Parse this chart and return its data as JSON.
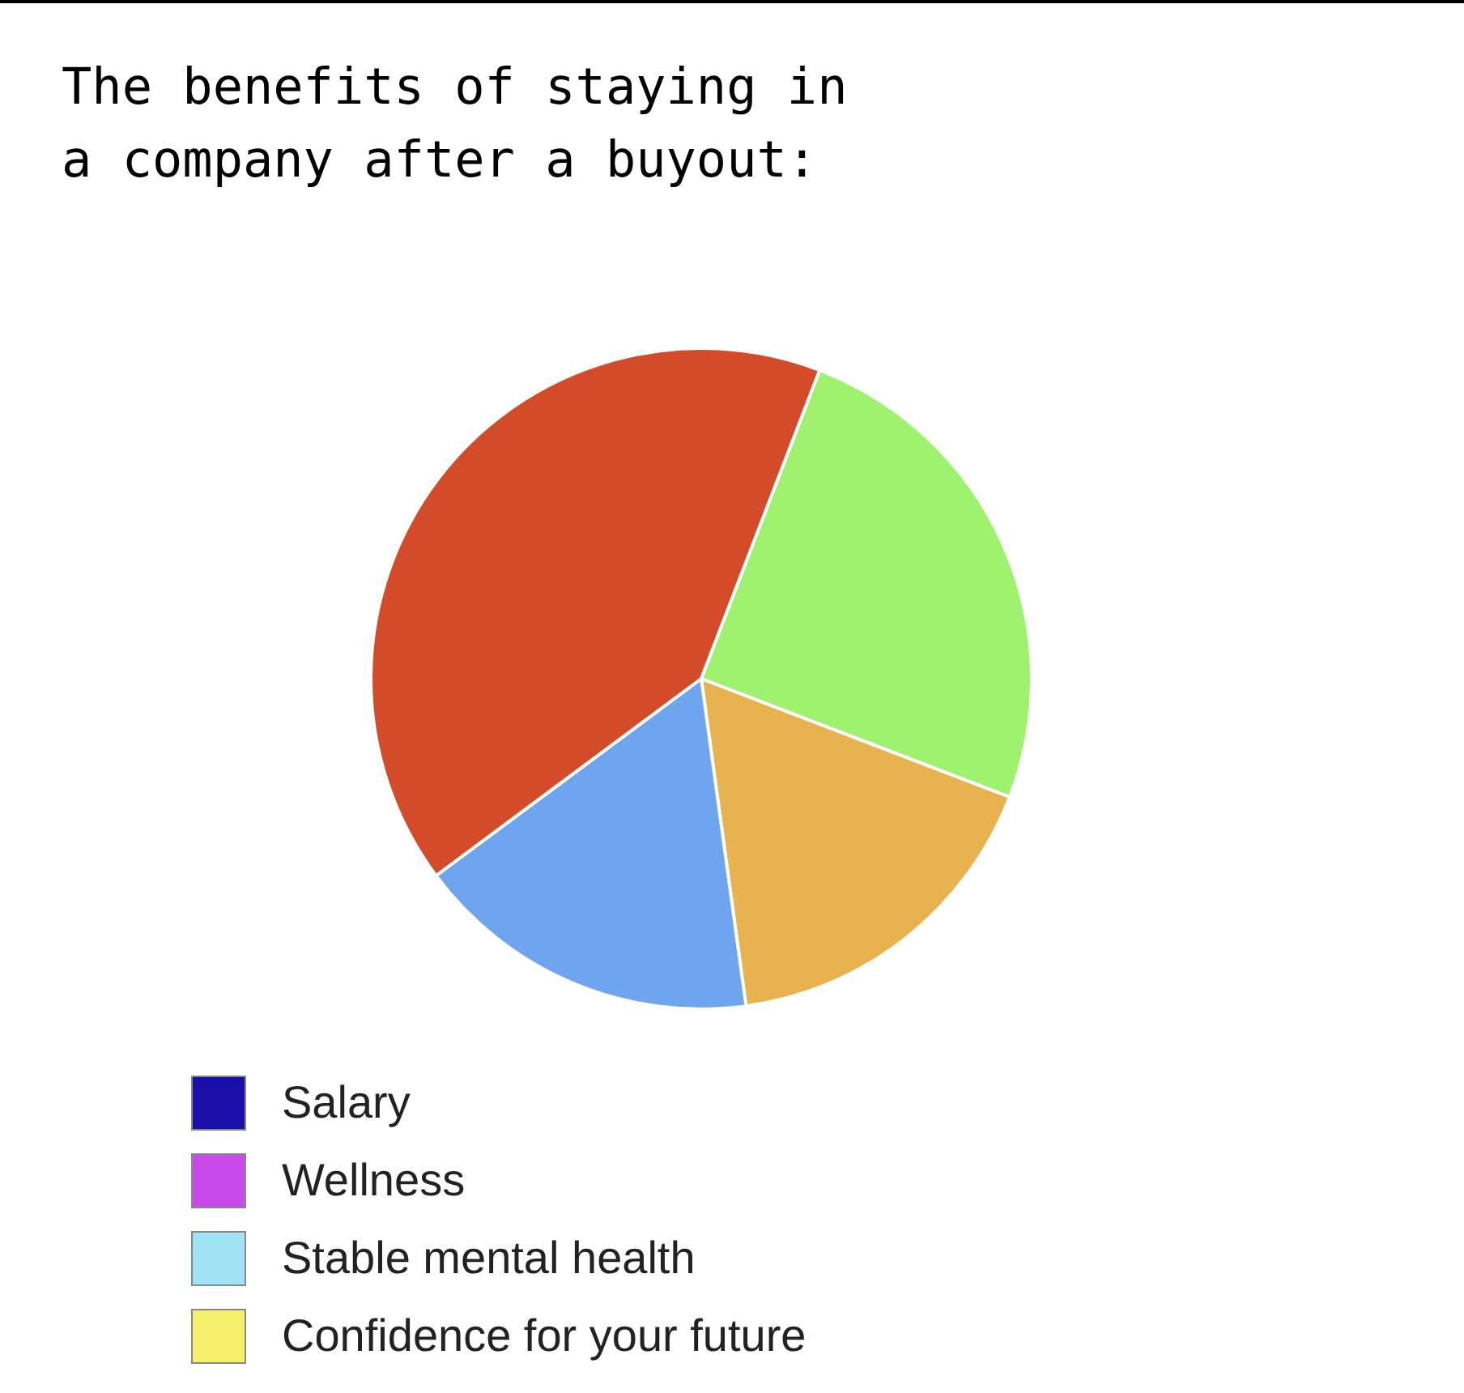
{
  "chart_data": [
    {
      "type": "pie",
      "title": "The benefits of staying in\na company after a buyout:",
      "categories": [
        null,
        null,
        null,
        null
      ],
      "values": [
        25,
        17,
        17,
        41
      ],
      "colors": [
        "#9ef26e",
        "#e8b34e",
        "#6fa5ef",
        "#d44b2a"
      ],
      "legend": false
    },
    {
      "type": "other",
      "annotations": [
        "Salary",
        "Wellness",
        "Stable mental health",
        "Confidence for your future"
      ],
      "colors": [
        "#1a0fa8",
        "#c64be8",
        "#9fe3f5",
        "#f5f16a"
      ]
    }
  ]
}
